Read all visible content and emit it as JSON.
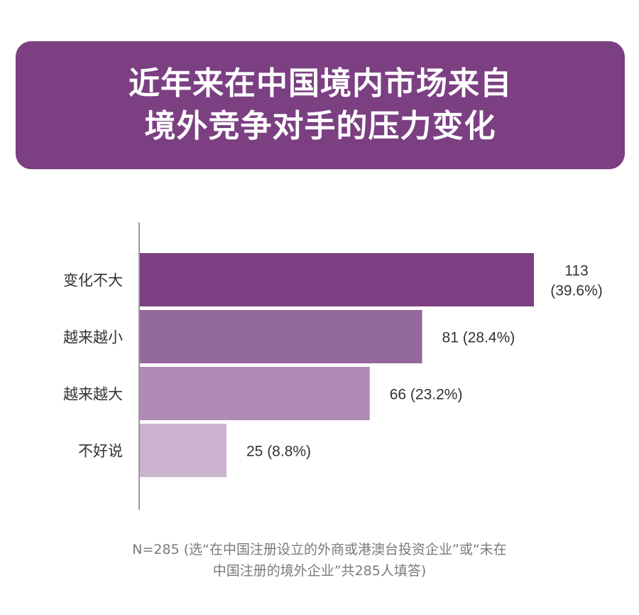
{
  "title": {
    "line1": "近年来在中国境内市场来自",
    "line2": "境外竞争对手的压力变化"
  },
  "colors": {
    "banner": "#7b3f82",
    "bars": [
      "#7b3f82",
      "#93689a",
      "#b08bb5",
      "#cbb3d0"
    ],
    "axis": "#9a9a9a",
    "text": "#333333",
    "footnote": "#7a7a7a"
  },
  "chart_data": {
    "type": "bar",
    "orientation": "horizontal",
    "categories": [
      "变化不大",
      "越来越小",
      "越来越大",
      "不好说"
    ],
    "values": [
      113,
      81,
      66,
      25
    ],
    "percents": [
      "39.6%",
      "28.4%",
      "23.2%",
      "8.8%"
    ],
    "value_labels": [
      [
        "113",
        "(39.6%)"
      ],
      [
        "81 (28.4%)"
      ],
      [
        "66 (23.2%)"
      ],
      [
        "25 (8.8%)"
      ]
    ],
    "xlim": [
      0,
      113
    ],
    "grid": false,
    "legend": "none"
  },
  "footnote": {
    "line1": "N=285 (选“在中国注册设立的外商或港澳台投资企业”或“未在",
    "line2": "中国注册的境外企业”共285人填答)"
  }
}
